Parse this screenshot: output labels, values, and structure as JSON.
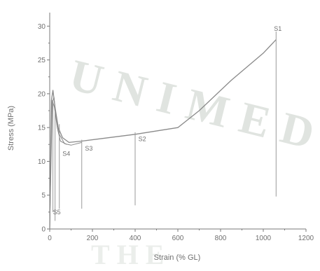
{
  "watermark": {
    "text": "UNIMED",
    "lower_text": "THE"
  },
  "colors": {
    "axis": "#7a7a7a",
    "curve": "#8a8a8a",
    "drop": "#9a9a9a",
    "text": "#6f6f6f"
  },
  "chart_data": {
    "type": "line",
    "title": "",
    "xlabel": "Strain (% GL)",
    "ylabel": "Stress (MPa)",
    "xlim": [
      0,
      1200
    ],
    "ylim": [
      0,
      32
    ],
    "xticks": [
      0,
      200,
      400,
      600,
      800,
      1000,
      1200
    ],
    "yticks": [
      0,
      5,
      10,
      15,
      20,
      25,
      30
    ],
    "grid": false,
    "series": [
      {
        "x": [
          0,
          8,
          15,
          25,
          40,
          60,
          90,
          150,
          300,
          400,
          600,
          700,
          850,
          1000,
          1060
        ],
        "y": [
          0,
          19,
          20.5,
          18,
          15,
          13.5,
          12.8,
          13,
          13.6,
          14,
          15,
          17.5,
          22,
          26,
          28
        ]
      },
      {
        "x": [
          0,
          10,
          20,
          30,
          45,
          70,
          100,
          150
        ],
        "y": [
          0,
          18.5,
          19.5,
          16.5,
          14,
          12.6,
          12.4,
          12.8
        ]
      },
      {
        "x": [
          0,
          12,
          22,
          35,
          50,
          80
        ],
        "y": [
          0,
          19,
          18,
          15,
          13,
          12.5
        ]
      }
    ],
    "break_lines": [
      {
        "x": 1060,
        "y_top": 29.2,
        "y_bottom": 4.8
      },
      {
        "x": 400,
        "y_top": 14.3,
        "y_bottom": 3.5
      },
      {
        "x": 150,
        "y_top": 13.2,
        "y_bottom": 3.0
      },
      {
        "x": 45,
        "y_top": 15.5,
        "y_bottom": 3.0
      },
      {
        "x": 25,
        "y_top": 17.5,
        "y_bottom": 1.2
      },
      {
        "x": 15,
        "y_top": 19.0,
        "y_bottom": 2.5
      }
    ],
    "annotations": [
      {
        "text": "S1",
        "x": 1050,
        "y": 29.3
      },
      {
        "text": "S2",
        "x": 415,
        "y": 13.0
      },
      {
        "text": "S3",
        "x": 165,
        "y": 11.6
      },
      {
        "text": "S4",
        "x": 60,
        "y": 10.8
      },
      {
        "text": "S5",
        "x": 15,
        "y": 2.2
      }
    ]
  }
}
